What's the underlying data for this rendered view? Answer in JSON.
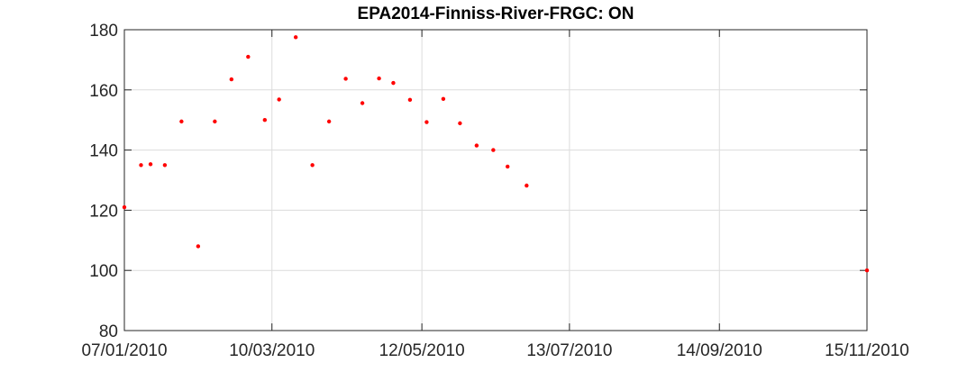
{
  "chart_data": {
    "type": "scatter",
    "title": "EPA2014-Finniss-River-FRGC: ON",
    "xlabel": "",
    "ylabel": "",
    "x_axis_type": "date",
    "xlim": [
      "2010-01-07",
      "2010-11-15"
    ],
    "ylim": [
      80,
      180
    ],
    "x_ticks": [
      {
        "date": "2010-01-07",
        "label": "07/01/2010"
      },
      {
        "date": "2010-03-10",
        "label": "10/03/2010"
      },
      {
        "date": "2010-05-12",
        "label": "12/05/2010"
      },
      {
        "date": "2010-07-13",
        "label": "13/07/2010"
      },
      {
        "date": "2010-09-14",
        "label": "14/09/2010"
      },
      {
        "date": "2010-11-15",
        "label": "15/11/2010"
      }
    ],
    "y_ticks": [
      80,
      100,
      120,
      140,
      160,
      180
    ],
    "grid": true,
    "marker_color": "#ff0000",
    "series": [
      {
        "points": [
          {
            "x": "2010-01-07",
            "y": 121
          },
          {
            "x": "2010-01-14",
            "y": 135
          },
          {
            "x": "2010-01-18",
            "y": 135.3
          },
          {
            "x": "2010-01-24",
            "y": 135
          },
          {
            "x": "2010-01-31",
            "y": 149.5
          },
          {
            "x": "2010-02-07",
            "y": 108
          },
          {
            "x": "2010-02-14",
            "y": 149.5
          },
          {
            "x": "2010-02-21",
            "y": 163.5
          },
          {
            "x": "2010-02-28",
            "y": 171
          },
          {
            "x": "2010-03-07",
            "y": 150
          },
          {
            "x": "2010-03-13",
            "y": 156.8
          },
          {
            "x": "2010-03-20",
            "y": 177.5
          },
          {
            "x": "2010-03-27",
            "y": 135
          },
          {
            "x": "2010-04-03",
            "y": 149.5
          },
          {
            "x": "2010-04-10",
            "y": 163.7
          },
          {
            "x": "2010-04-17",
            "y": 155.6
          },
          {
            "x": "2010-04-24",
            "y": 163.8
          },
          {
            "x": "2010-04-30",
            "y": 162.3
          },
          {
            "x": "2010-05-07",
            "y": 156.7
          },
          {
            "x": "2010-05-14",
            "y": 149.3
          },
          {
            "x": "2010-05-21",
            "y": 157
          },
          {
            "x": "2010-05-28",
            "y": 148.9
          },
          {
            "x": "2010-06-04",
            "y": 141.5
          },
          {
            "x": "2010-06-11",
            "y": 140
          },
          {
            "x": "2010-06-17",
            "y": 134.5
          },
          {
            "x": "2010-06-25",
            "y": 128.2
          },
          {
            "x": "2010-11-15",
            "y": 100
          }
        ]
      }
    ]
  }
}
